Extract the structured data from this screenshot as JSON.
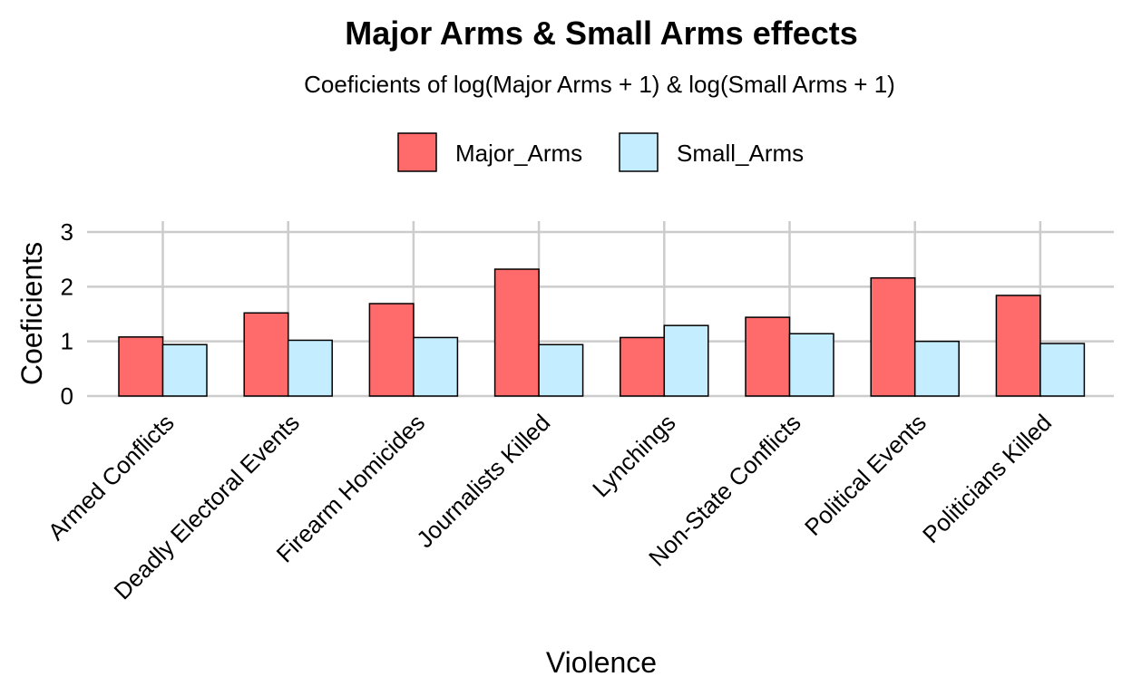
{
  "chart_data": {
    "type": "bar",
    "title": "Major Arms & Small Arms effects",
    "subtitle": "Coeficients of log(Major Arms + 1) & log(Small Arms + 1)",
    "xlabel": "Violence",
    "ylabel": "Coeficients",
    "ylim": [
      0,
      3
    ],
    "yticks": [
      0,
      1,
      2,
      3
    ],
    "grid": true,
    "legend_position": "top",
    "categories": [
      "Armed Conflicts",
      "Deadly Electoral Events",
      "Firearm Homicides",
      "Journalists Killed",
      "Lynchings",
      "Non-State Conflicts",
      "Political Events",
      "Politicians Killed"
    ],
    "series": [
      {
        "name": "Major_Arms",
        "color": "#ff6b6b",
        "values": [
          1.08,
          1.52,
          1.69,
          2.32,
          1.07,
          1.44,
          2.16,
          1.84
        ]
      },
      {
        "name": "Small_Arms",
        "color": "#c4eeff",
        "values": [
          0.94,
          1.02,
          1.07,
          0.94,
          1.29,
          1.14,
          1.0,
          0.96
        ]
      }
    ]
  }
}
